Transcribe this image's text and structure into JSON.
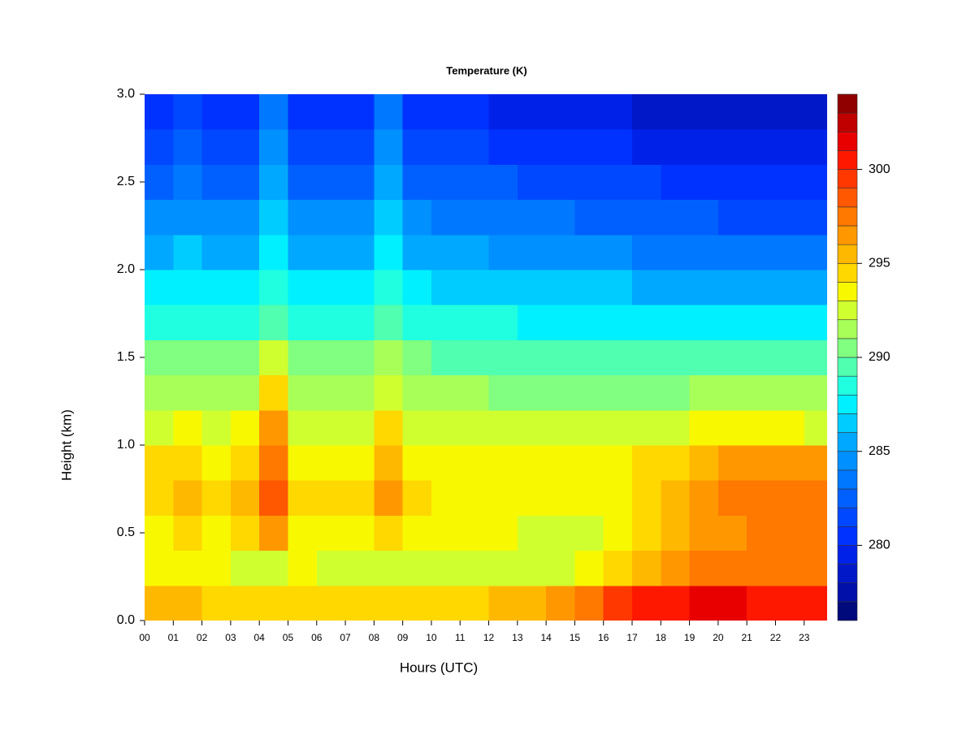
{
  "chart_data": {
    "type": "heatmap",
    "title": "Temperature (K)",
    "xlabel": "Hours (UTC)",
    "ylabel": "Height (km)",
    "x": [
      0.5,
      1.5,
      2.5,
      3.5,
      4.5,
      5.5,
      6.5,
      7.5,
      8.5,
      9.5,
      10.5,
      11.5,
      12.5,
      13.5,
      14.5,
      15.5,
      16.5,
      17.5,
      18.5,
      19.5,
      20.5,
      21.5,
      22.5,
      23.5
    ],
    "y": [
      0.1,
      0.3,
      0.5,
      0.7,
      0.9,
      1.1,
      1.3,
      1.5,
      1.7,
      1.9,
      2.1,
      2.3,
      2.5,
      2.7,
      2.9
    ],
    "z": [
      [
        295,
        295,
        294,
        294,
        294,
        294,
        294,
        294,
        294,
        294,
        294,
        294,
        295,
        295,
        296,
        297,
        299,
        300,
        300,
        301,
        301,
        300,
        300,
        300
      ],
      [
        293,
        293,
        293,
        292,
        292,
        293,
        292,
        292,
        292,
        292,
        292,
        292,
        292,
        292,
        292,
        293,
        294,
        295,
        296,
        297,
        297,
        297,
        297,
        297
      ],
      [
        293,
        294,
        293,
        294,
        296,
        293,
        293,
        293,
        294,
        293,
        293,
        293,
        293,
        292,
        292,
        292,
        293,
        294,
        295,
        296,
        296,
        297,
        297,
        297
      ],
      [
        294,
        295,
        294,
        295,
        298,
        294,
        294,
        294,
        296,
        294,
        293,
        293,
        293,
        293,
        293,
        293,
        293,
        294,
        295,
        296,
        297,
        297,
        297,
        297
      ],
      [
        294,
        294,
        293,
        294,
        297,
        293,
        293,
        293,
        295,
        293,
        293,
        293,
        293,
        293,
        293,
        293,
        293,
        294,
        294,
        295,
        296,
        296,
        296,
        296
      ],
      [
        292,
        293,
        292,
        293,
        296,
        292,
        292,
        292,
        294,
        292,
        292,
        292,
        292,
        292,
        292,
        292,
        292,
        292,
        292,
        293,
        293,
        293,
        293,
        292
      ],
      [
        291,
        291,
        291,
        291,
        294,
        291,
        291,
        291,
        292,
        291,
        291,
        291,
        290,
        290,
        290,
        290,
        290,
        290,
        290,
        291,
        291,
        291,
        291,
        291
      ],
      [
        290,
        290,
        290,
        290,
        292,
        290,
        290,
        290,
        291,
        290,
        289,
        289,
        289,
        289,
        289,
        289,
        289,
        289,
        289,
        289,
        289,
        289,
        289,
        289
      ],
      [
        288,
        288,
        288,
        288,
        289,
        288,
        288,
        288,
        289,
        288,
        288,
        288,
        288,
        287,
        287,
        287,
        287,
        287,
        287,
        287,
        287,
        287,
        287,
        287
      ],
      [
        287,
        287,
        287,
        287,
        288,
        287,
        287,
        287,
        288,
        287,
        286,
        286,
        286,
        286,
        286,
        286,
        286,
        285,
        285,
        285,
        285,
        285,
        285,
        285
      ],
      [
        285,
        286,
        285,
        285,
        287,
        285,
        285,
        285,
        287,
        285,
        285,
        285,
        284,
        284,
        284,
        284,
        284,
        283,
        283,
        283,
        283,
        283,
        283,
        283
      ],
      [
        284,
        284,
        284,
        284,
        286,
        284,
        284,
        284,
        286,
        284,
        283,
        283,
        283,
        283,
        283,
        282,
        282,
        282,
        282,
        282,
        281,
        281,
        281,
        281
      ],
      [
        282,
        283,
        282,
        282,
        285,
        282,
        282,
        282,
        285,
        282,
        282,
        282,
        282,
        281,
        281,
        281,
        281,
        281,
        280,
        280,
        280,
        280,
        280,
        280
      ],
      [
        281,
        282,
        281,
        281,
        284,
        281,
        281,
        281,
        284,
        281,
        281,
        281,
        280,
        280,
        280,
        280,
        280,
        279,
        279,
        279,
        279,
        279,
        279,
        279
      ],
      [
        280,
        281,
        280,
        280,
        283,
        280,
        280,
        280,
        283,
        280,
        280,
        280,
        279,
        279,
        279,
        279,
        279,
        278,
        278,
        278,
        278,
        278,
        278,
        278
      ]
    ],
    "xlim": [
      0,
      23.8
    ],
    "ylim": [
      0,
      3
    ],
    "xticks": [
      {
        "value": 0,
        "label": "00"
      },
      {
        "value": 1,
        "label": "01"
      },
      {
        "value": 2,
        "label": "02"
      },
      {
        "value": 3,
        "label": "03"
      },
      {
        "value": 4,
        "label": "04"
      },
      {
        "value": 5,
        "label": "05"
      },
      {
        "value": 6,
        "label": "06"
      },
      {
        "value": 7,
        "label": "07"
      },
      {
        "value": 8,
        "label": "08"
      },
      {
        "value": 9,
        "label": "09"
      },
      10,
      11,
      12,
      13,
      14,
      15,
      16,
      17,
      18,
      19,
      20,
      21,
      22,
      23
    ],
    "yticks": [
      {
        "value": 0,
        "label": "0.0"
      },
      0.5,
      {
        "value": 1,
        "label": "1.0"
      },
      1.5,
      {
        "value": 2,
        "label": "2.0"
      },
      2.5,
      {
        "value": 3,
        "label": "3.0"
      }
    ],
    "colorbar": {
      "zlim": [
        276,
        304
      ],
      "ticks": [
        280,
        285,
        290,
        295,
        300
      ],
      "colors": [
        "#000a7a",
        "#0010a8",
        "#0018c8",
        "#0022e8",
        "#0032ff",
        "#0048ff",
        "#0060ff",
        "#0078ff",
        "#0090ff",
        "#00a8ff",
        "#00ccff",
        "#00f0ff",
        "#20ffe0",
        "#50ffb0",
        "#80ff80",
        "#a8ff58",
        "#d0ff30",
        "#f8f800",
        "#ffd800",
        "#ffb800",
        "#ff9800",
        "#ff7800",
        "#ff5800",
        "#ff3800",
        "#ff1800",
        "#e80000",
        "#c00000",
        "#900000"
      ]
    }
  }
}
